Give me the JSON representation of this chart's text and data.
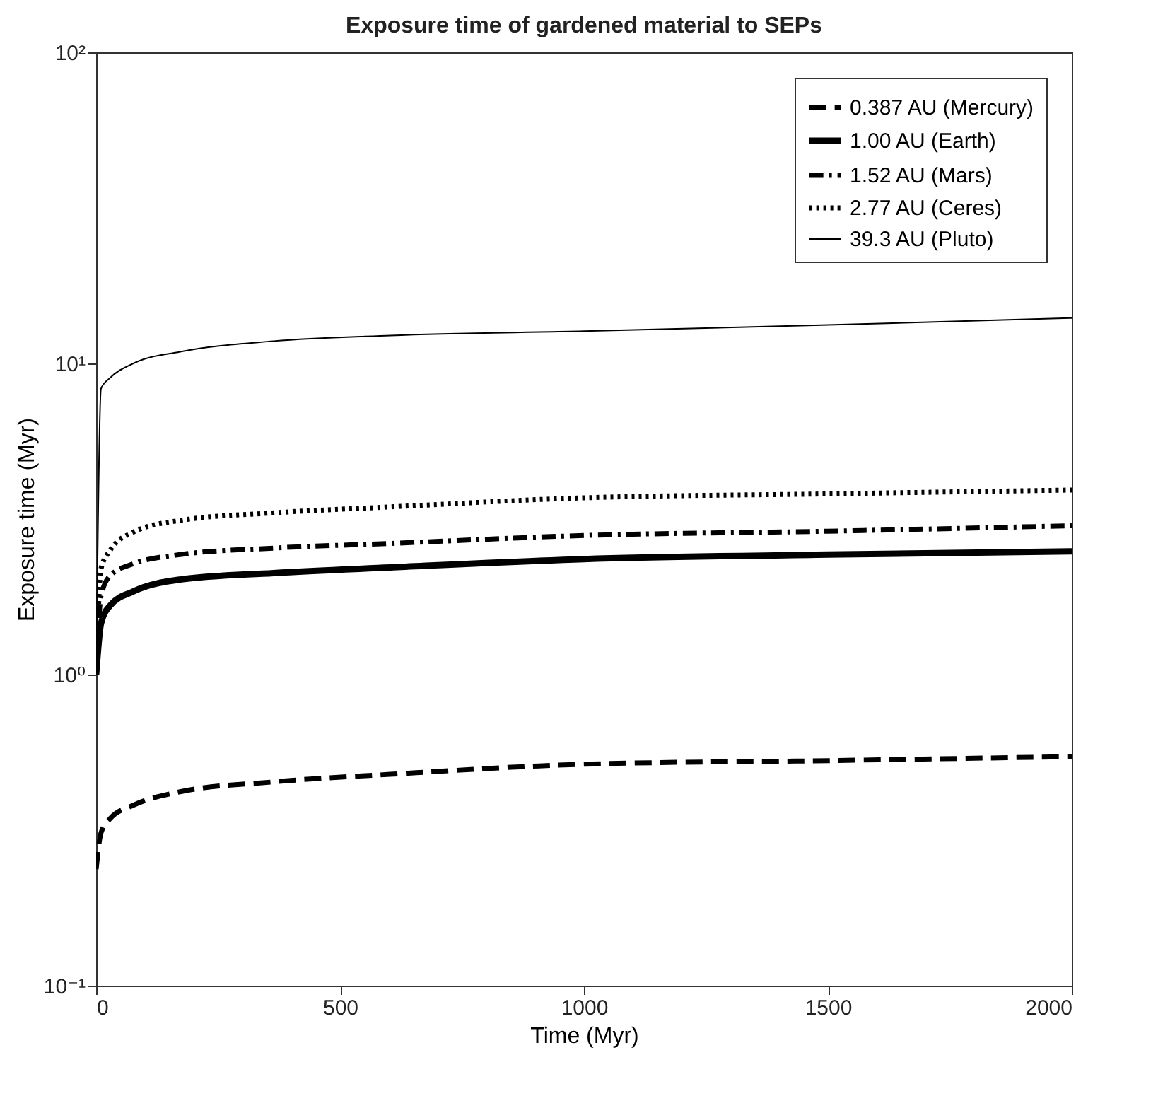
{
  "chart_data": {
    "type": "line",
    "title": "Exposure time of gardened material to SEPs",
    "xlabel": "Time (Myr)",
    "ylabel": "Exposure time (Myr)",
    "x": [
      0,
      10,
      29,
      76,
      172,
      364,
      603,
      1000,
      1500,
      2000
    ],
    "series": [
      {
        "name": "0.387 AU (Mercury)",
        "color": "#000000",
        "line_style": "dashed",
        "values": [
          0.237,
          0.31,
          0.345,
          0.38,
          0.42,
          0.452,
          0.478,
          0.515,
          0.529,
          0.545
        ]
      },
      {
        "name": "1.00 AU (Earth)",
        "color": "#000000",
        "line_style": "solid",
        "values": [
          1.0,
          1.46,
          1.67,
          1.85,
          2.02,
          2.12,
          2.21,
          2.35,
          2.43,
          2.49
        ]
      },
      {
        "name": "1.52 AU (Mars)",
        "color": "#000000",
        "line_style": "dashdot",
        "values": [
          1.0,
          1.79,
          2.08,
          2.27,
          2.43,
          2.55,
          2.64,
          2.8,
          2.89,
          3.01
        ]
      },
      {
        "name": "2.77 AU (Ceres)",
        "color": "#000000",
        "line_style": "dotted",
        "values": [
          1.0,
          2.19,
          2.51,
          2.87,
          3.13,
          3.31,
          3.46,
          3.7,
          3.81,
          3.92
        ]
      },
      {
        "name": "39.3 AU (Pluto)",
        "color": "#000000",
        "line_style": "solid",
        "values": [
          1.0,
          8.3,
          9.0,
          10.0,
          10.9,
          11.8,
          12.3,
          12.7,
          13.3,
          14.0
        ]
      }
    ],
    "xlim": [
      0,
      2000
    ],
    "xticks": [
      0,
      500,
      1000,
      1500,
      2000
    ],
    "ylim": [
      0.1,
      100
    ],
    "yticks": [
      {
        "value": 0.1,
        "label": "10⁻¹"
      },
      {
        "value": 1,
        "label": "10⁰"
      },
      {
        "value": 10,
        "label": "10¹"
      },
      {
        "value": 100,
        "label": "10²"
      }
    ],
    "log": "y",
    "legend": "top right",
    "grid": false,
    "marker": "none"
  }
}
